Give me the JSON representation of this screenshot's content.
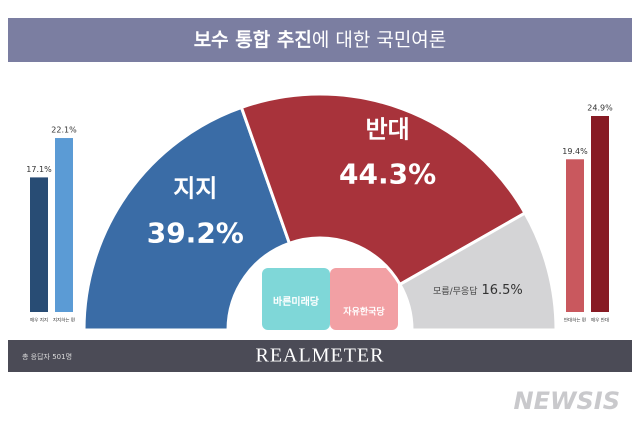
{
  "header": {
    "title_emphasis": "보수 통합 추진",
    "title_rest": "에 대한 국민여론"
  },
  "chart_data": [
    {
      "type": "semi-donut",
      "categories": [
        "지지",
        "반대",
        "모름/무응답"
      ],
      "values": [
        39.2,
        44.3,
        16.5
      ],
      "value_labels": [
        "39.2%",
        "44.3%",
        "16.5%"
      ],
      "colors": [
        "#3a6ca6",
        "#a8333b",
        "#d4d4d6"
      ]
    },
    {
      "type": "bar",
      "categories": [
        "매우 지지",
        "지지하는 편"
      ],
      "values": [
        17.1,
        22.1
      ],
      "value_labels": [
        "17.1%",
        "22.1%"
      ],
      "colors": [
        "#284c74",
        "#5b9bd5"
      ]
    },
    {
      "type": "bar",
      "categories": [
        "반대하는 편",
        "매우 반대"
      ],
      "values": [
        19.4,
        24.9
      ],
      "value_labels": [
        "19.4%",
        "24.9%"
      ],
      "colors": [
        "#c9585e",
        "#871b24"
      ]
    }
  ],
  "logos": [
    "바른미래당",
    "자유한국당"
  ],
  "footer": {
    "note": "총 응답자 501명",
    "brand": "REALMETER"
  },
  "watermark": "NEWSIS"
}
